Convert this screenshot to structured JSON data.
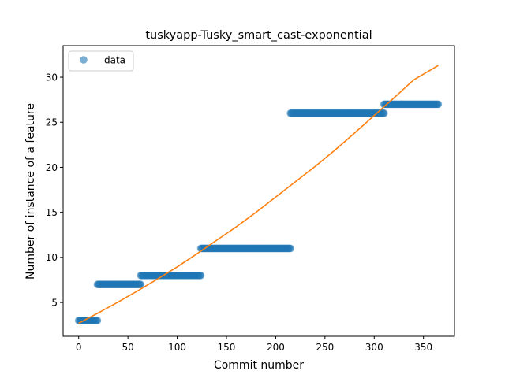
{
  "chart_data": {
    "type": "scatter",
    "title": "tuskyapp-Tusky_smart_cast-exponential",
    "xlabel": "Commit number",
    "ylabel": "Number of instance of a feature",
    "xlim": [
      -15.8,
      381.5
    ],
    "ylim": [
      1.25,
      33.5
    ],
    "xticks": [
      0,
      50,
      100,
      150,
      200,
      250,
      300,
      350
    ],
    "yticks": [
      5,
      10,
      15,
      20,
      25,
      30
    ],
    "grid": false,
    "legend": {
      "placement": "top-left",
      "entries": [
        "data"
      ]
    },
    "colors": {
      "data": "#1f77b4",
      "fit": "#ff7f0e"
    },
    "series": [
      {
        "name": "data",
        "kind": "scatter",
        "segments": [
          {
            "x_start": 0,
            "x_end": 19,
            "y": 3
          },
          {
            "x_start": 19,
            "x_end": 63,
            "y": 7
          },
          {
            "x_start": 63,
            "x_end": 124,
            "y": 8
          },
          {
            "x_start": 124,
            "x_end": 215,
            "y": 11
          },
          {
            "x_start": 215,
            "x_end": 310,
            "y": 26
          },
          {
            "x_start": 310,
            "x_end": 365,
            "y": 27
          }
        ]
      },
      {
        "kind": "line",
        "x": [
          0,
          20,
          40,
          60,
          80,
          100,
          120,
          140,
          160,
          180,
          200,
          220,
          240,
          260,
          280,
          300,
          320,
          340,
          365
        ],
        "y": [
          2.7,
          3.85,
          5.05,
          6.3,
          7.6,
          8.95,
          10.4,
          11.9,
          13.4,
          15.0,
          16.7,
          18.4,
          20.1,
          21.9,
          23.8,
          25.75,
          27.7,
          29.7,
          31.3
        ]
      }
    ]
  }
}
